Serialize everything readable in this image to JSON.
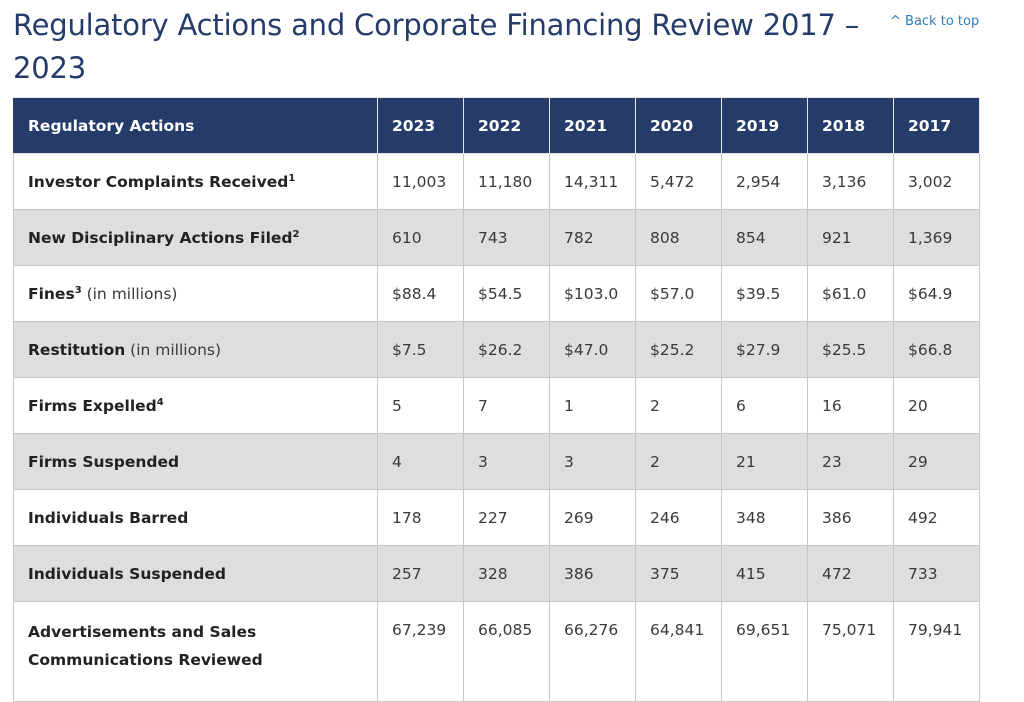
{
  "title": "Regulatory Actions and Corporate Financing Review 2017 – 2023",
  "back_to_top": "^ Back to top",
  "table": {
    "header_label": "Regulatory Actions",
    "years": [
      "2023",
      "2022",
      "2021",
      "2020",
      "2019",
      "2018",
      "2017"
    ],
    "rows": [
      {
        "label": "Investor Complaints Received",
        "footnote": "1",
        "suffix": "",
        "values": [
          "11,003",
          "11,180",
          "14,311",
          "5,472",
          "2,954",
          "3,136",
          "3,002"
        ]
      },
      {
        "label": "New Disciplinary Actions Filed",
        "footnote": "2",
        "suffix": "",
        "values": [
          "610",
          "743",
          "782",
          "808",
          "854",
          "921",
          "1,369"
        ]
      },
      {
        "label": "Fines",
        "footnote": "3",
        "suffix": " (in millions)",
        "values": [
          "$88.4",
          "$54.5",
          "$103.0",
          "$57.0",
          "$39.5",
          "$61.0",
          "$64.9"
        ]
      },
      {
        "label": "Restitution",
        "footnote": "",
        "suffix": " (in millions)",
        "values": [
          "$7.5",
          "$26.2",
          "$47.0",
          "$25.2",
          "$27.9",
          "$25.5",
          "$66.8"
        ]
      },
      {
        "label": "Firms Expelled",
        "footnote": "4",
        "suffix": "",
        "values": [
          "5",
          "7",
          "1",
          "2",
          "6",
          "16",
          "20"
        ]
      },
      {
        "label": "Firms Suspended",
        "footnote": "",
        "suffix": "",
        "values": [
          "4",
          "3",
          "3",
          "2",
          "21",
          "23",
          "29"
        ]
      },
      {
        "label": "Individuals Barred",
        "footnote": "",
        "suffix": "",
        "values": [
          "178",
          "227",
          "269",
          "246",
          "348",
          "386",
          "492"
        ]
      },
      {
        "label": "Individuals Suspended",
        "footnote": "",
        "suffix": "",
        "values": [
          "257",
          "328",
          "386",
          "375",
          "415",
          "472",
          "733"
        ]
      },
      {
        "label": "Advertisements and Sales Communications Reviewed",
        "footnote": "",
        "suffix": "",
        "values": [
          "67,239",
          "66,085",
          "66,276",
          "64,841",
          "69,651",
          "75,071",
          "79,941"
        ]
      }
    ]
  },
  "colors": {
    "header_bg": "#253c6b",
    "title": "#253c6b",
    "link": "#2d7ec1",
    "shaded_row": "#dedede"
  }
}
